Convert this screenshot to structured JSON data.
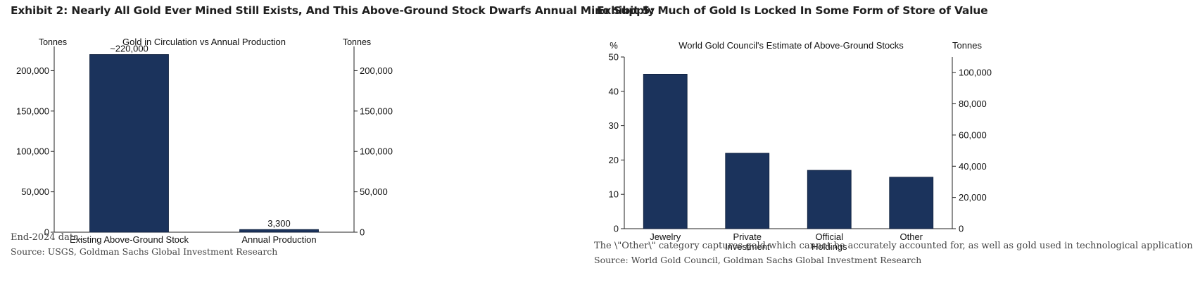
{
  "chart_data": [
    {
      "type": "bar",
      "exhibit_title": "Exhibit 2: Nearly All Gold Ever Mined Still Exists, And This Above-Ground Stock Dwarfs Annual Mine Supply",
      "title": "Gold in Circulation vs Annual Production",
      "ylabel_left": "Tonnes",
      "ylabel_right": "Tonnes",
      "categories": [
        "Existing Above-Ground Stock",
        "Annual Production"
      ],
      "values": [
        220000,
        3300
      ],
      "data_labels": [
        "~220,000",
        "3,300"
      ],
      "ylim": [
        0,
        230000
      ],
      "yticks": [
        0,
        50000,
        100000,
        150000,
        200000
      ],
      "yticks_labels": [
        "0",
        "50,000",
        "100,000",
        "150,000",
        "200,000"
      ],
      "bar_color": "#1b335c",
      "grid": false,
      "note": "End-2024 data.",
      "source": "Source: USGS, Goldman Sachs Global Investment Research"
    },
    {
      "type": "bar",
      "exhibit_title": "Exhibit 5: Much of Gold Is Locked In Some Form of Store of Value",
      "title": "World Gold Council's Estimate of Above-Ground Stocks",
      "ylabel_left": "%",
      "ylabel_right": "Tonnes",
      "categories": [
        [
          "Jewelry"
        ],
        [
          "Private",
          "Investment"
        ],
        [
          "Official",
          "Holdings"
        ],
        [
          "Other"
        ]
      ],
      "values": [
        45,
        22,
        17,
        15
      ],
      "ylim": [
        0,
        50
      ],
      "yticks": [
        0,
        10,
        20,
        30,
        40,
        50
      ],
      "yticks_labels": [
        "0",
        "10",
        "20",
        "30",
        "40",
        "50"
      ],
      "ylim_right": [
        0,
        110000
      ],
      "yticks_right": [
        0,
        20000,
        40000,
        60000,
        80000,
        100000
      ],
      "yticks_right_labels": [
        "0",
        "20,000",
        "40,000",
        "60,000",
        "80,000",
        "100,000"
      ],
      "bar_color": "#1b335c",
      "grid": false,
      "note": "The \\\"Other\\\" category captures gold which cannot be accurately accounted for, as well as gold used in technological applications.",
      "source": "Source: World Gold Council, Goldman Sachs Global Investment Research"
    }
  ]
}
